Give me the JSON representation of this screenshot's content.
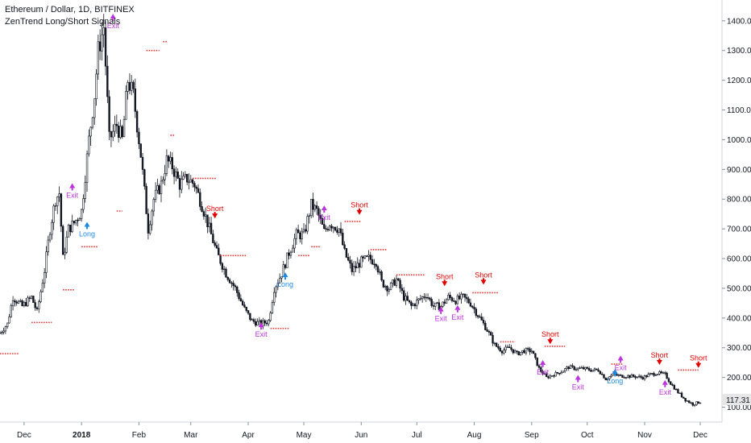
{
  "header": {
    "title": "Ethereum / Dollar, 1D, BITFINEX",
    "subtitle": "ZenTrend Long/Short Signals"
  },
  "colors": {
    "candle": "#131722",
    "stop_dots": "#e53935",
    "short": "#e10000",
    "long": "#1e88e5",
    "exit": "#bb33dd",
    "price_label_bg": "#e6e6e6"
  },
  "last_price_label": "117.31",
  "chart_data": {
    "type": "candlestick",
    "title": "Ethereum / Dollar, 1D, BITFINEX",
    "indicator": "ZenTrend Long/Short Signals",
    "ylim": [
      50,
      1470
    ],
    "xlim": [
      "2017-11-18",
      "2018-12-11"
    ],
    "y_ticks": [
      100,
      200,
      300,
      400,
      500,
      600,
      700,
      800,
      900,
      1000,
      1100,
      1200,
      1300,
      1400
    ],
    "y_tick_labels": [
      "100.00",
      "200.00",
      "300.00",
      "400.00",
      "500.00",
      "600.00",
      "700.00",
      "800.00",
      "900.00",
      "1000.00",
      "1100.00",
      "1200.00",
      "1300.00",
      "1400.00"
    ],
    "x_ticks": [
      {
        "label": "Dec",
        "date": "2017-12-01",
        "bold": false
      },
      {
        "label": "2018",
        "date": "2018-01-01",
        "bold": true
      },
      {
        "label": "Feb",
        "date": "2018-02-01",
        "bold": false
      },
      {
        "label": "Mar",
        "date": "2018-03-01",
        "bold": false
      },
      {
        "label": "Apr",
        "date": "2018-04-01",
        "bold": false
      },
      {
        "label": "May",
        "date": "2018-05-01",
        "bold": false
      },
      {
        "label": "Jun",
        "date": "2018-06-01",
        "bold": false
      },
      {
        "label": "Jul",
        "date": "2018-07-01",
        "bold": false
      },
      {
        "label": "Aug",
        "date": "2018-08-01",
        "bold": false
      },
      {
        "label": "Sep",
        "date": "2018-09-01",
        "bold": false
      },
      {
        "label": "Oct",
        "date": "2018-10-01",
        "bold": false
      },
      {
        "label": "Nov",
        "date": "2018-11-01",
        "bold": false
      },
      {
        "label": "Dec",
        "date": "2018-12-01",
        "bold": false
      }
    ],
    "price_path": [
      [
        "2017-11-18",
        350
      ],
      [
        "2017-11-22",
        380
      ],
      [
        "2017-11-25",
        470
      ],
      [
        "2017-11-30",
        440
      ],
      [
        "2017-12-05",
        470
      ],
      [
        "2017-12-08",
        420
      ],
      [
        "2017-12-12",
        560
      ],
      [
        "2017-12-15",
        700
      ],
      [
        "2017-12-18",
        800
      ],
      [
        "2017-12-20",
        820
      ],
      [
        "2017-12-22",
        600
      ],
      [
        "2017-12-25",
        700
      ],
      [
        "2017-12-28",
        720
      ],
      [
        "2018-01-01",
        760
      ],
      [
        "2018-01-05",
        1000
      ],
      [
        "2018-01-08",
        1150
      ],
      [
        "2018-01-10",
        1300
      ],
      [
        "2018-01-13",
        1380
      ],
      [
        "2018-01-16",
        1000
      ],
      [
        "2018-01-20",
        1050
      ],
      [
        "2018-01-23",
        1000
      ],
      [
        "2018-01-26",
        1200
      ],
      [
        "2018-01-29",
        1150
      ],
      [
        "2018-02-02",
        950
      ],
      [
        "2018-02-06",
        700
      ],
      [
        "2018-02-09",
        800
      ],
      [
        "2018-02-13",
        850
      ],
      [
        "2018-02-16",
        930
      ],
      [
        "2018-02-19",
        910
      ],
      [
        "2018-02-23",
        850
      ],
      [
        "2018-02-27",
        870
      ],
      [
        "2018-03-03",
        850
      ],
      [
        "2018-03-07",
        780
      ],
      [
        "2018-03-11",
        700
      ],
      [
        "2018-03-15",
        620
      ],
      [
        "2018-03-20",
        550
      ],
      [
        "2018-03-25",
        500
      ],
      [
        "2018-03-30",
        430
      ],
      [
        "2018-04-03",
        390
      ],
      [
        "2018-04-08",
        380
      ],
      [
        "2018-04-12",
        390
      ],
      [
        "2018-04-15",
        500
      ],
      [
        "2018-04-19",
        550
      ],
      [
        "2018-04-23",
        620
      ],
      [
        "2018-04-27",
        680
      ],
      [
        "2018-05-01",
        680
      ],
      [
        "2018-05-05",
        780
      ],
      [
        "2018-05-08",
        760
      ],
      [
        "2018-05-12",
        690
      ],
      [
        "2018-05-15",
        720
      ],
      [
        "2018-05-20",
        700
      ],
      [
        "2018-05-23",
        620
      ],
      [
        "2018-05-27",
        560
      ],
      [
        "2018-06-01",
        590
      ],
      [
        "2018-06-05",
        600
      ],
      [
        "2018-06-09",
        590
      ],
      [
        "2018-06-12",
        520
      ],
      [
        "2018-06-16",
        500
      ],
      [
        "2018-06-20",
        530
      ],
      [
        "2018-06-24",
        470
      ],
      [
        "2018-06-28",
        440
      ],
      [
        "2018-07-02",
        460
      ],
      [
        "2018-07-06",
        480
      ],
      [
        "2018-07-10",
        440
      ],
      [
        "2018-07-14",
        440
      ],
      [
        "2018-07-18",
        470
      ],
      [
        "2018-07-22",
        460
      ],
      [
        "2018-07-26",
        470
      ],
      [
        "2018-07-30",
        450
      ],
      [
        "2018-08-03",
        410
      ],
      [
        "2018-08-08",
        360
      ],
      [
        "2018-08-12",
        310
      ],
      [
        "2018-08-16",
        290
      ],
      [
        "2018-08-20",
        300
      ],
      [
        "2018-08-24",
        280
      ],
      [
        "2018-08-28",
        290
      ],
      [
        "2018-09-01",
        290
      ],
      [
        "2018-09-05",
        230
      ],
      [
        "2018-09-09",
        200
      ],
      [
        "2018-09-13",
        210
      ],
      [
        "2018-09-17",
        220
      ],
      [
        "2018-09-21",
        235
      ],
      [
        "2018-09-25",
        230
      ],
      [
        "2018-09-29",
        230
      ],
      [
        "2018-10-03",
        225
      ],
      [
        "2018-10-07",
        225
      ],
      [
        "2018-10-11",
        195
      ],
      [
        "2018-10-15",
        210
      ],
      [
        "2018-10-19",
        205
      ],
      [
        "2018-10-23",
        205
      ],
      [
        "2018-10-27",
        203
      ],
      [
        "2018-10-31",
        200
      ],
      [
        "2018-11-04",
        210
      ],
      [
        "2018-11-08",
        215
      ],
      [
        "2018-11-12",
        210
      ],
      [
        "2018-11-15",
        180
      ],
      [
        "2018-11-19",
        150
      ],
      [
        "2018-11-23",
        125
      ],
      [
        "2018-11-27",
        110
      ],
      [
        "2018-12-01",
        118
      ]
    ],
    "stop_levels": [
      {
        "start": "2017-11-18",
        "end": "2017-11-28",
        "y": 280
      },
      {
        "start": "2017-12-05",
        "end": "2017-12-16",
        "y": 385
      },
      {
        "start": "2017-12-22",
        "end": "2017-12-28",
        "y": 495
      },
      {
        "start": "2018-01-01",
        "end": "2018-01-10",
        "y": 640
      },
      {
        "start": "2018-01-20",
        "end": "2018-01-23",
        "y": 760
      },
      {
        "start": "2018-02-05",
        "end": "2018-02-12",
        "y": 1300
      },
      {
        "start": "2018-02-14",
        "end": "2018-02-16",
        "y": 1330
      },
      {
        "start": "2018-02-18",
        "end": "2018-02-20",
        "y": 1015
      },
      {
        "start": "2018-03-02",
        "end": "2018-03-15",
        "y": 870
      },
      {
        "start": "2018-03-17",
        "end": "2018-03-31",
        "y": 610
      },
      {
        "start": "2018-04-13",
        "end": "2018-04-23",
        "y": 365
      },
      {
        "start": "2018-04-28",
        "end": "2018-05-04",
        "y": 610
      },
      {
        "start": "2018-05-05",
        "end": "2018-05-10",
        "y": 640
      },
      {
        "start": "2018-05-23",
        "end": "2018-06-01",
        "y": 725
      },
      {
        "start": "2018-06-06",
        "end": "2018-06-15",
        "y": 630
      },
      {
        "start": "2018-06-20",
        "end": "2018-07-05",
        "y": 545
      },
      {
        "start": "2018-07-31",
        "end": "2018-08-14",
        "y": 485
      },
      {
        "start": "2018-08-15",
        "end": "2018-08-23",
        "y": 320
      },
      {
        "start": "2018-09-08",
        "end": "2018-09-19",
        "y": 305
      },
      {
        "start": "2018-10-14",
        "end": "2018-10-20",
        "y": 245
      },
      {
        "start": "2018-11-19",
        "end": "2018-11-30",
        "y": 225
      }
    ],
    "signals": [
      {
        "type": "Long",
        "date": "2018-01-04",
        "y": 710
      },
      {
        "type": "Exit",
        "date": "2017-12-27",
        "y": 840
      },
      {
        "type": "Exit",
        "date": "2018-01-18",
        "y": 1410
      },
      {
        "type": "Short",
        "date": "2018-03-14",
        "y": 738
      },
      {
        "type": "Long",
        "date": "2018-04-21",
        "y": 540
      },
      {
        "type": "Exit",
        "date": "2018-04-08",
        "y": 372
      },
      {
        "type": "Exit",
        "date": "2018-05-12",
        "y": 765
      },
      {
        "type": "Short",
        "date": "2018-05-31",
        "y": 750
      },
      {
        "type": "Short",
        "date": "2018-07-16",
        "y": 510
      },
      {
        "type": "Exit",
        "date": "2018-07-14",
        "y": 425
      },
      {
        "type": "Exit",
        "date": "2018-07-23",
        "y": 430
      },
      {
        "type": "Short",
        "date": "2018-08-06",
        "y": 515
      },
      {
        "type": "Exit",
        "date": "2018-09-07",
        "y": 245
      },
      {
        "type": "Short",
        "date": "2018-09-11",
        "y": 315
      },
      {
        "type": "Exit",
        "date": "2018-09-26",
        "y": 195
      },
      {
        "type": "Long",
        "date": "2018-10-16",
        "y": 215
      },
      {
        "type": "Exit",
        "date": "2018-10-19",
        "y": 260
      },
      {
        "type": "Short",
        "date": "2018-11-09",
        "y": 245
      },
      {
        "type": "Exit",
        "date": "2018-11-12",
        "y": 178
      },
      {
        "type": "Short",
        "date": "2018-11-30",
        "y": 235
      }
    ]
  }
}
